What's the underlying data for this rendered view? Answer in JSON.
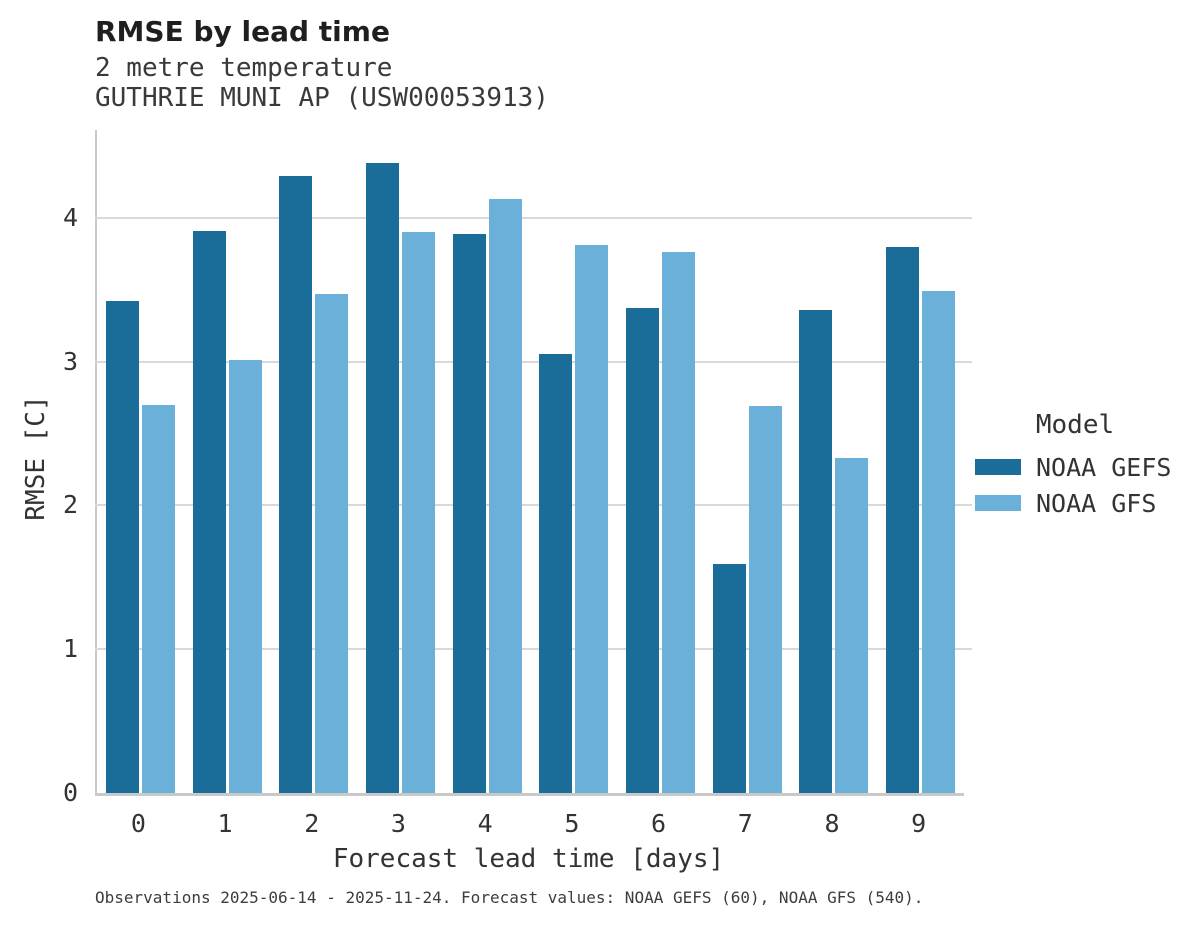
{
  "header": {
    "title": "RMSE by lead time",
    "subtitle1": "2 metre temperature",
    "subtitle2": "GUTHRIE MUNI AP (USW00053913)"
  },
  "legend": {
    "title": "Model",
    "entries": [
      "NOAA GEFS",
      "NOAA GFS"
    ]
  },
  "caption": "Observations 2025-06-14 - 2025-11-24. Forecast values: NOAA GEFS (60), NOAA GFS (540).",
  "colors": {
    "gefs_dark_blue": "#1a6c99",
    "gfs_light_blue": "#6bb0d8",
    "gridline": "#d9d9d9",
    "axis_spine": "#c9c9c9"
  },
  "chart_data": {
    "type": "bar",
    "title": "RMSE by lead time",
    "subtitle": [
      "2 metre temperature",
      "GUTHRIE MUNI AP (USW00053913)"
    ],
    "categories": [
      "0",
      "1",
      "2",
      "3",
      "4",
      "5",
      "6",
      "7",
      "8",
      "9"
    ],
    "series": [
      {
        "name": "NOAA GEFS",
        "color": "#1a6c99",
        "values": [
          3.42,
          3.91,
          4.29,
          4.38,
          3.89,
          3.05,
          3.37,
          1.59,
          3.36,
          3.8
        ]
      },
      {
        "name": "NOAA GFS",
        "color": "#6bb0d8",
        "values": [
          2.7,
          3.01,
          3.47,
          3.9,
          4.13,
          3.81,
          3.76,
          2.69,
          2.33,
          3.49
        ]
      }
    ],
    "xlabel": "Forecast lead time [days]",
    "ylabel": "RMSE [C]",
    "ylim": [
      0,
      4.61
    ],
    "y_ticks": [
      0,
      1,
      2,
      3,
      4
    ],
    "grid": "horizontal",
    "legend_title": "Model",
    "legend_position": "right"
  }
}
